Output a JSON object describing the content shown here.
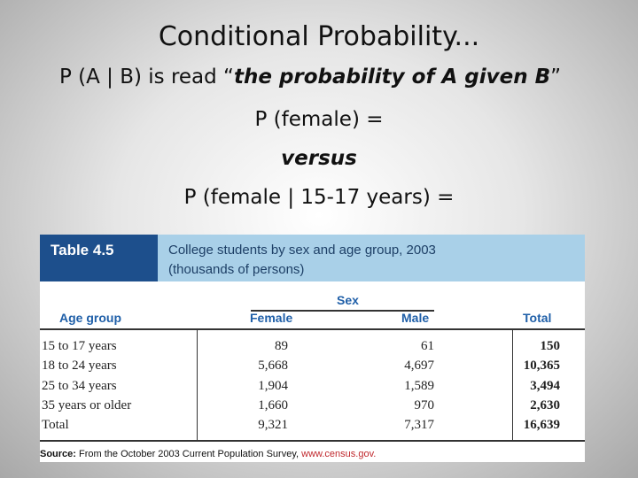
{
  "slide": {
    "title": "Conditional Probability...",
    "line1": {
      "prefix": "P (A | B) is read “",
      "italic": "the probability of A given B",
      "suffix": "”"
    },
    "line2": "P (female) =",
    "line3": "versus",
    "line4": "P (female | 15-17 years) ="
  },
  "table": {
    "label": "Table 4.5",
    "caption": [
      "College students by sex and age group, 2003",
      "(thousands of persons)"
    ],
    "group_header": "Sex",
    "columns": [
      "Age group",
      "Female",
      "Male",
      "Total"
    ],
    "rows": [
      [
        "15 to 17 years",
        "89",
        "61",
        "150"
      ],
      [
        "18 to 24 years",
        "5,668",
        "4,697",
        "10,365"
      ],
      [
        "25 to 34 years",
        "1,904",
        "1,589",
        "3,494"
      ],
      [
        "35 years or older",
        "1,660",
        "970",
        "2,630"
      ],
      [
        "Total",
        "9,321",
        "7,317",
        "16,639"
      ]
    ],
    "source": {
      "label": "Source:",
      "text": "From the October 2003 Current Population Survey,",
      "link": "www.census.gov."
    }
  }
}
